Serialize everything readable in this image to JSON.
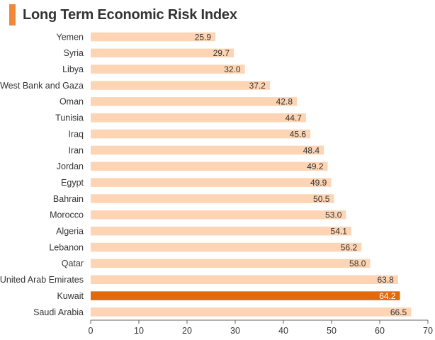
{
  "chart_data": {
    "type": "bar",
    "orientation": "horizontal",
    "title": "Long Term Economic Risk Index",
    "xlabel": "",
    "ylabel": "",
    "xlim": [
      0,
      70
    ],
    "xticks": [
      0,
      10,
      20,
      30,
      40,
      50,
      60,
      70
    ],
    "grid": false,
    "legend": "none",
    "categories": [
      "Yemen",
      "Syria",
      "Libya",
      "West Bank and Gaza",
      "Oman",
      "Tunisia",
      "Iraq",
      "Iran",
      "Jordan",
      "Egypt",
      "Bahrain",
      "Morocco",
      "Algeria",
      "Lebanon",
      "Qatar",
      "United Arab Emirates",
      "Kuwait",
      "Saudi Arabia"
    ],
    "values": [
      25.9,
      29.7,
      32.0,
      37.2,
      42.8,
      44.7,
      45.6,
      48.4,
      49.2,
      49.9,
      50.5,
      53.0,
      54.1,
      56.2,
      58.0,
      63.8,
      64.2,
      66.5
    ],
    "value_labels": [
      "25.9",
      "29.7",
      "32.0",
      "37.2",
      "42.8",
      "44.7",
      "45.6",
      "48.4",
      "49.2",
      "49.9",
      "50.5",
      "53.0",
      "54.1",
      "56.2",
      "58.0",
      "63.8",
      "64.2",
      "66.5"
    ],
    "highlight": "Kuwait"
  },
  "colors": {
    "bar": "#fdd5b4",
    "highlight": "#e06a10",
    "accent": "#f0883c",
    "label_on_bar": "#333333",
    "label_on_highlight": "#ffffff",
    "axis": "#666666"
  }
}
